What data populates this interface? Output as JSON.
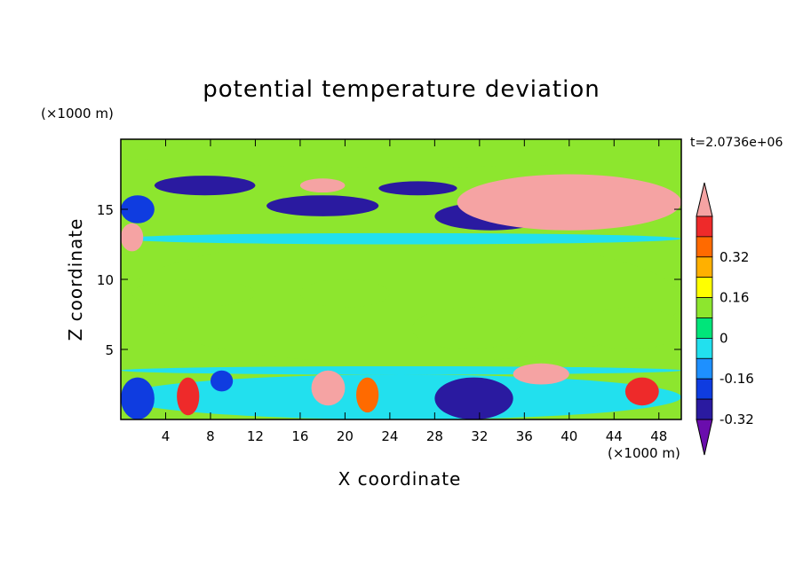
{
  "chart_data": {
    "type": "heatmap",
    "title": "potential temperature deviation",
    "xlabel": "X coordinate",
    "ylabel": "Z coordinate",
    "x_unit": "(×1000 m)",
    "z_unit": "(×1000 m)",
    "time_label": "t=2.0736e+06",
    "xlim": [
      0,
      50
    ],
    "zlim": [
      0,
      20
    ],
    "x_ticks": [
      "4",
      "8",
      "12",
      "16",
      "20",
      "24",
      "28",
      "32",
      "36",
      "40",
      "44",
      "48"
    ],
    "z_ticks": [
      "5",
      "10",
      "15"
    ],
    "colorbar": {
      "labels": [
        "0.32",
        "0.16",
        "0",
        "-0.16",
        "-0.32"
      ],
      "levels": [
        -0.4,
        -0.32,
        -0.24,
        -0.16,
        -0.08,
        0,
        0.08,
        0.16,
        0.24,
        0.32,
        0.4
      ],
      "colors": [
        "#6a0dad",
        "#2a1aa0",
        "#0f3ce0",
        "#1e90ff",
        "#22e0ee",
        "#00e57a",
        "#8de62e",
        "#ffff00",
        "#ffb000",
        "#ff6a00",
        "#ee2a2a",
        "#f5a3a3"
      ],
      "over_color": "#f5a3a3",
      "under_color": "#6a0dad"
    },
    "regions": [
      {
        "x": [
          0,
          50
        ],
        "z": [
          0,
          20
        ],
        "value": 0.0
      },
      {
        "x": [
          0,
          50
        ],
        "z": [
          4,
          13
        ],
        "value": 0.0
      },
      {
        "x": [
          1,
          12
        ],
        "z": [
          8,
          10
        ],
        "value": 0.06
      },
      {
        "x": [
          16,
          24
        ],
        "z": [
          8,
          10
        ],
        "value": 0.06
      },
      {
        "x": [
          26,
          36
        ],
        "z": [
          5,
          8
        ],
        "value": 0.06
      },
      {
        "x": [
          41,
          50
        ],
        "z": [
          5,
          8
        ],
        "value": 0.06
      },
      {
        "x": [
          0,
          50
        ],
        "z": [
          12.5,
          13.3
        ],
        "value": -0.1
      },
      {
        "x": [
          0,
          50
        ],
        "z": [
          3.2,
          3.8
        ],
        "value": -0.1
      },
      {
        "x": [
          0,
          50
        ],
        "z": [
          18,
          20
        ],
        "value": 0.06
      },
      {
        "x": [
          3,
          12
        ],
        "z": [
          16,
          17.4
        ],
        "value": -0.36
      },
      {
        "x": [
          13,
          23
        ],
        "z": [
          14.5,
          16
        ],
        "value": -0.36
      },
      {
        "x": [
          23,
          30
        ],
        "z": [
          16,
          17
        ],
        "value": -0.36
      },
      {
        "x": [
          28,
          38
        ],
        "z": [
          13.5,
          15.5
        ],
        "value": -0.36
      },
      {
        "x": [
          0,
          3
        ],
        "z": [
          14,
          16
        ],
        "value": -0.32
      },
      {
        "x": [
          16,
          20
        ],
        "z": [
          16.2,
          17.2
        ],
        "value": 0.45
      },
      {
        "x": [
          30,
          50
        ],
        "z": [
          13.5,
          17.5
        ],
        "value": 0.45
      },
      {
        "x": [
          0,
          2
        ],
        "z": [
          12,
          14
        ],
        "value": 0.45
      },
      {
        "x": [
          0,
          50
        ],
        "z": [
          0,
          3.2
        ],
        "value": -0.16
      },
      {
        "x": [
          28,
          35
        ],
        "z": [
          0,
          3
        ],
        "value": -0.36
      },
      {
        "x": [
          0,
          3
        ],
        "z": [
          0,
          3
        ],
        "value": -0.32
      },
      {
        "x": [
          5,
          7
        ],
        "z": [
          0.3,
          3
        ],
        "value": 0.32
      },
      {
        "x": [
          45,
          48
        ],
        "z": [
          1,
          3
        ],
        "value": 0.32
      },
      {
        "x": [
          17,
          20
        ],
        "z": [
          1,
          3.5
        ],
        "value": 0.45
      },
      {
        "x": [
          35,
          40
        ],
        "z": [
          2.5,
          4
        ],
        "value": 0.45
      },
      {
        "x": [
          8,
          10
        ],
        "z": [
          2,
          3.5
        ],
        "value": -0.32
      },
      {
        "x": [
          21,
          23
        ],
        "z": [
          0.5,
          3
        ],
        "value": 0.24
      }
    ]
  }
}
